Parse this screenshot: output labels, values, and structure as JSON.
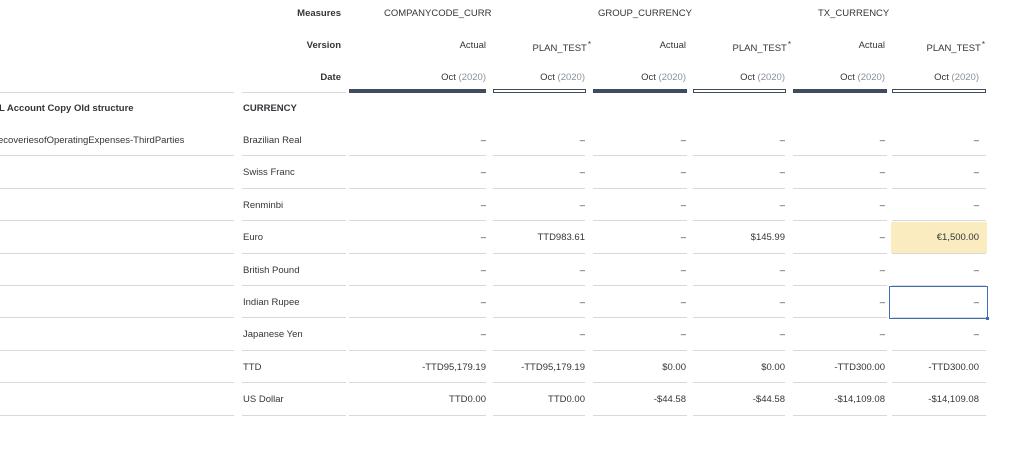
{
  "header": {
    "measures_label": "Measures",
    "version_label": "Version",
    "date_label": "Date",
    "measures": [
      "COMPANYCODE_CURR",
      "GROUP_CURRENCY",
      "TX_CURRENCY"
    ],
    "versions": [
      "Actual",
      "PLAN_TEST",
      "Actual",
      "PLAN_TEST",
      "Actual",
      "PLAN_TEST"
    ],
    "version_star": "*",
    "date_month": "Oct",
    "date_year": "(2020)"
  },
  "row_headers": {
    "account_header": "L Account Copy Old structure",
    "currency_header": "CURRENCY",
    "account_value": "ecoveriesofOperatingExpenses-ThirdParties"
  },
  "rows": [
    {
      "currency": "Brazilian Real",
      "values": [
        "–",
        "–",
        "–",
        "–",
        "–",
        "–"
      ]
    },
    {
      "currency": "Swiss Franc",
      "values": [
        "–",
        "–",
        "–",
        "–",
        "–",
        "–"
      ]
    },
    {
      "currency": "Renminbi",
      "values": [
        "–",
        "–",
        "–",
        "–",
        "–",
        "–"
      ]
    },
    {
      "currency": "Euro",
      "values": [
        "–",
        "TTD983.61",
        "–",
        "$145.99",
        "–",
        "€1,500.00"
      ]
    },
    {
      "currency": "British Pound",
      "values": [
        "–",
        "–",
        "–",
        "–",
        "–",
        "–"
      ]
    },
    {
      "currency": "Indian Rupee",
      "values": [
        "–",
        "–",
        "–",
        "–",
        "–",
        "–"
      ]
    },
    {
      "currency": "Japanese Yen",
      "values": [
        "–",
        "–",
        "–",
        "–",
        "–",
        "–"
      ]
    },
    {
      "currency": "TTD",
      "values": [
        "-TTD95,179.19",
        "-TTD95,179.19",
        "$0.00",
        "$0.00",
        "-TTD300.00",
        "-TTD300.00"
      ]
    },
    {
      "currency": "US Dollar",
      "values": [
        "TTD0.00",
        "TTD0.00",
        "-$44.58",
        "-$44.58",
        "-$14,109.08",
        "-$14,109.08"
      ]
    }
  ],
  "colors": {
    "highlight": "#fbecc0",
    "selection": "#3f6eb5",
    "header_bar": "#3e4c5e"
  }
}
